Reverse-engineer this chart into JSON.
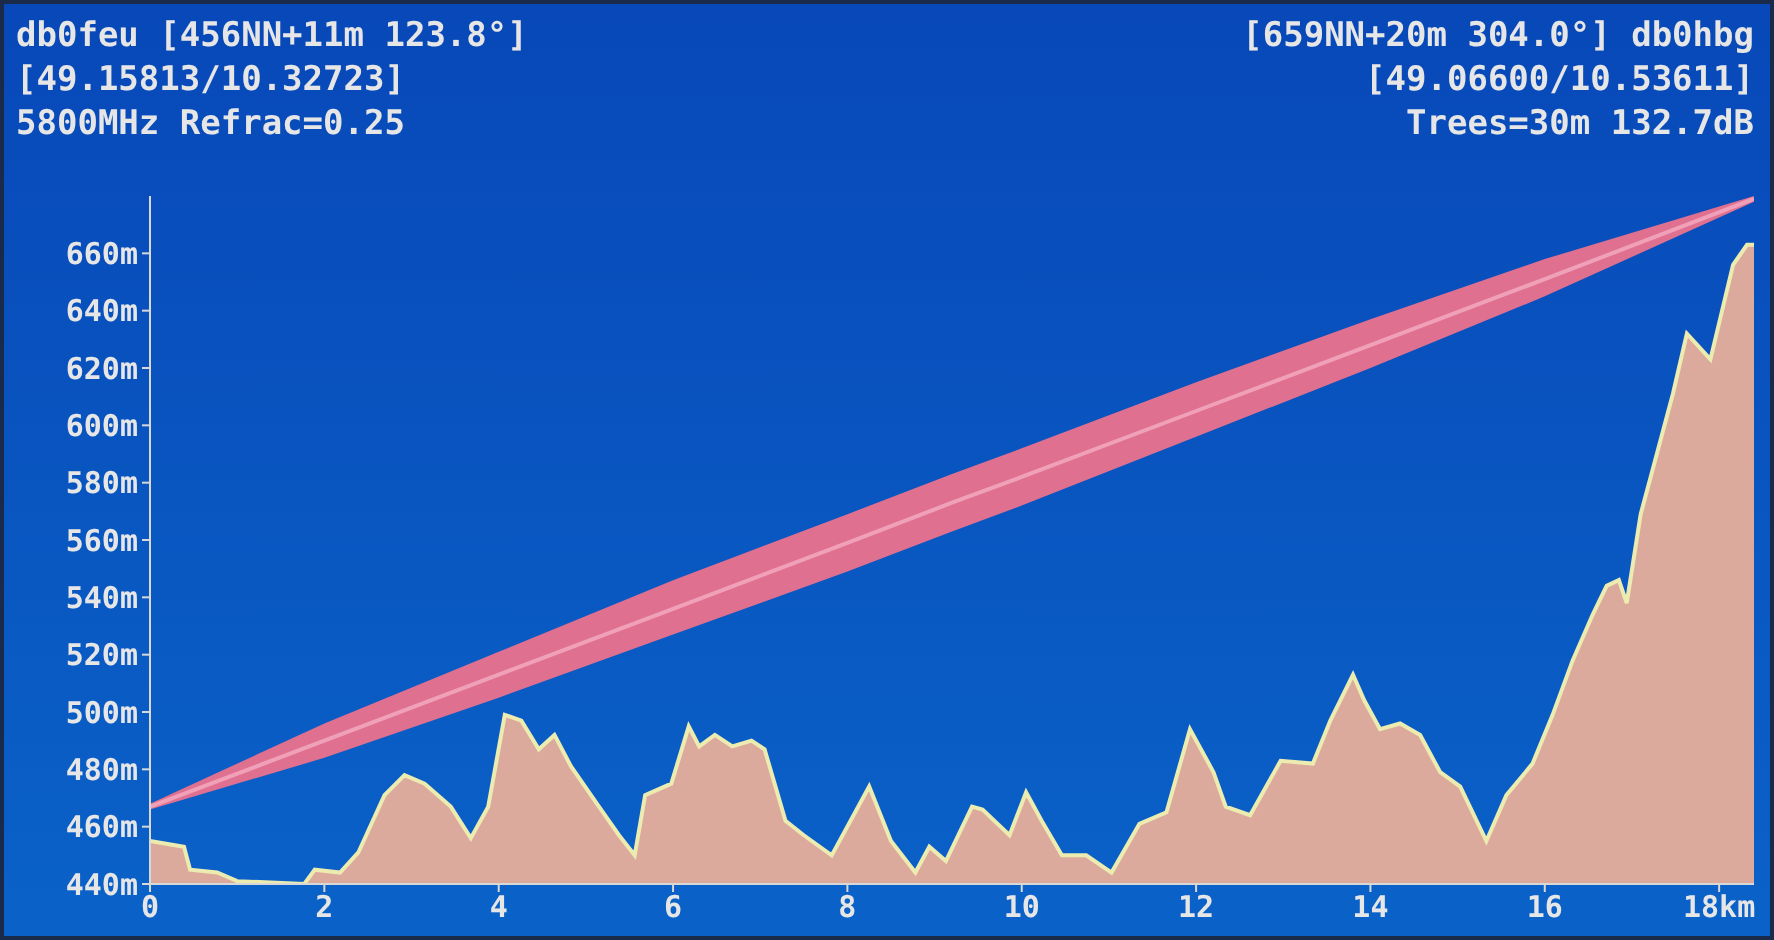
{
  "chart_data": {
    "type": "area",
    "annotations": [
      "db0feu [456NN+11m 123.8°]",
      "[49.15813/10.32723]",
      "5800MHz Refrac=0.25",
      "[659NN+20m 304.0°] db0hbg",
      "[49.06600/10.53611]",
      "Trees=30m 132.7dB"
    ],
    "xlim": [
      0,
      18.4
    ],
    "xticks": [
      0,
      2,
      4,
      6,
      8,
      10,
      12,
      14,
      16,
      {
        "value": 18,
        "label": "18km"
      }
    ],
    "ylim": [
      440,
      680
    ],
    "yticks": [
      {
        "value": 440,
        "label": "440m"
      },
      {
        "value": 460,
        "label": "460m"
      },
      {
        "value": 480,
        "label": "480m"
      },
      {
        "value": 500,
        "label": "500m"
      },
      {
        "value": 520,
        "label": "520m"
      },
      {
        "value": 540,
        "label": "540m"
      },
      {
        "value": 560,
        "label": "560m"
      },
      {
        "value": 580,
        "label": "580m"
      },
      {
        "value": 600,
        "label": "600m"
      },
      {
        "value": 620,
        "label": "620m"
      },
      {
        "value": 640,
        "label": "640m"
      },
      {
        "value": 660,
        "label": "660m"
      }
    ],
    "grid": false,
    "marker": "none",
    "line_style": "solid",
    "series": [
      {
        "color": "#dcaa9c",
        "x": [
          0,
          0.39,
          0.46,
          0.77,
          1.0,
          1.77,
          1.89,
          2.18,
          2.39,
          2.69,
          2.92,
          3.15,
          3.45,
          3.68,
          3.88,
          4.07,
          4.26,
          4.46,
          4.64,
          4.83,
          5.15,
          5.38,
          5.56,
          5.68,
          5.98,
          6.18,
          6.3,
          6.48,
          6.68,
          6.9,
          7.05,
          7.29,
          7.5,
          7.82,
          8.25,
          8.5,
          8.78,
          8.94,
          9.13,
          9.43,
          9.55,
          9.86,
          10.05,
          10.23,
          10.46,
          10.74,
          11.03,
          11.35,
          11.66,
          11.93,
          12.2,
          12.34,
          12.62,
          12.97,
          13.34,
          13.54,
          13.8,
          13.93,
          14.11,
          14.34,
          14.57,
          14.8,
          15.03,
          15.33,
          15.56,
          15.86,
          16.09,
          16.32,
          16.55,
          16.71,
          16.85,
          16.94,
          17.1,
          17.25,
          17.47,
          17.63,
          17.9,
          18.16,
          18.32,
          18.4
        ],
        "values": [
          455,
          453,
          445,
          444,
          441,
          440,
          445,
          444,
          451,
          471,
          478,
          475,
          467,
          456,
          467,
          499,
          497,
          487,
          492,
          481,
          467,
          457,
          450,
          471,
          475,
          495,
          488,
          492,
          488,
          490,
          487,
          462,
          457,
          450,
          474,
          455,
          444,
          453,
          448,
          467,
          466,
          457,
          472,
          462,
          450,
          450,
          444,
          461,
          465,
          494,
          479,
          467,
          464,
          483,
          482,
          497,
          513,
          504,
          494,
          496,
          492,
          479,
          474,
          455,
          471,
          482,
          499,
          518,
          534,
          544,
          546,
          538,
          569,
          586,
          611,
          632,
          623,
          656,
          663,
          663
        ]
      },
      {
        "type": "line",
        "color": "#f0a0b8",
        "x": [
          0,
          2,
          4,
          6,
          8,
          9.2,
          10,
          12,
          14,
          16,
          18.4
        ],
        "values": [
          467,
          490,
          513,
          536,
          559,
          573,
          582,
          605,
          628,
          651,
          679
        ],
        "lower": [
          466,
          484,
          505,
          527,
          549,
          563,
          572,
          596,
          620,
          645,
          678
        ],
        "upper": [
          468,
          496,
          521,
          546,
          569,
          583,
          592,
          615,
          637,
          658,
          680
        ]
      }
    ]
  }
}
